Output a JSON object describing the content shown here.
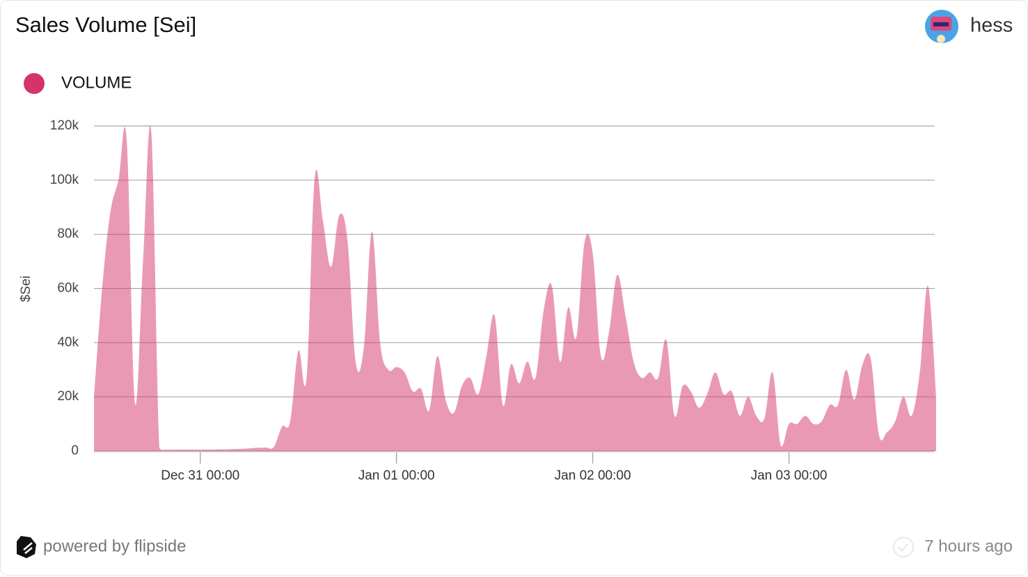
{
  "chart_data": {
    "type": "area",
    "title": "Sales Volume [Sei]",
    "author": "hess",
    "ylabel": "$Sei",
    "footer": "powered by flipside",
    "updated": "7 hours ago",
    "x": [
      "Dec 30 11:00",
      "Dec 30 12:00",
      "Dec 30 13:00",
      "Dec 30 14:00",
      "Dec 30 15:00",
      "Dec 30 16:00",
      "Dec 30 17:00",
      "Dec 30 18:00",
      "Dec 30 19:00",
      "Dec 30 20:00",
      "Dec 30 21:00",
      "Dec 30 22:00",
      "Dec 30 23:00",
      "Dec 31 00:00",
      "Dec 31 01:00",
      "Dec 31 02:00",
      "Dec 31 03:00",
      "Dec 31 04:00",
      "Dec 31 05:00",
      "Dec 31 06:00",
      "Dec 31 07:00",
      "Dec 31 08:00",
      "Dec 31 09:00",
      "Dec 31 10:00",
      "Dec 31 11:00",
      "Dec 31 12:00",
      "Dec 31 13:00",
      "Dec 31 14:00",
      "Dec 31 15:00",
      "Dec 31 16:00",
      "Dec 31 17:00",
      "Dec 31 18:00",
      "Dec 31 19:00",
      "Dec 31 20:00",
      "Dec 31 21:00",
      "Dec 31 22:00",
      "Dec 31 23:00",
      "Jan 01 00:00",
      "Jan 01 01:00",
      "Jan 01 02:00",
      "Jan 01 03:00",
      "Jan 01 04:00",
      "Jan 01 05:00",
      "Jan 01 06:00",
      "Jan 01 07:00",
      "Jan 01 08:00",
      "Jan 01 09:00",
      "Jan 01 10:00",
      "Jan 01 11:00",
      "Jan 01 12:00",
      "Jan 01 13:00",
      "Jan 01 14:00",
      "Jan 01 15:00",
      "Jan 01 16:00",
      "Jan 01 17:00",
      "Jan 01 18:00",
      "Jan 01 19:00",
      "Jan 01 20:00",
      "Jan 01 21:00",
      "Jan 01 22:00",
      "Jan 01 23:00",
      "Jan 02 00:00",
      "Jan 02 01:00",
      "Jan 02 02:00",
      "Jan 02 03:00",
      "Jan 02 04:00",
      "Jan 02 05:00",
      "Jan 02 06:00",
      "Jan 02 07:00",
      "Jan 02 08:00",
      "Jan 02 09:00",
      "Jan 02 10:00",
      "Jan 02 11:00",
      "Jan 02 12:00",
      "Jan 02 13:00",
      "Jan 02 14:00",
      "Jan 02 15:00",
      "Jan 02 16:00",
      "Jan 02 17:00",
      "Jan 02 18:00",
      "Jan 02 19:00",
      "Jan 02 20:00",
      "Jan 02 21:00",
      "Jan 02 22:00",
      "Jan 02 23:00",
      "Jan 03 00:00",
      "Jan 03 01:00",
      "Jan 03 02:00",
      "Jan 03 03:00",
      "Jan 03 04:00",
      "Jan 03 05:00",
      "Jan 03 06:00",
      "Jan 03 07:00",
      "Jan 03 08:00",
      "Jan 03 09:00",
      "Jan 03 10:00",
      "Jan 03 11:00",
      "Jan 03 12:00",
      "Jan 03 13:00",
      "Jan 03 14:00",
      "Jan 03 15:00",
      "Jan 03 16:00",
      "Jan 03 17:00",
      "Jan 03 18:00"
    ],
    "series": [
      {
        "name": "VOLUME",
        "color": "#d6336c",
        "values": [
          20000,
          60000,
          88000,
          100000,
          115000,
          18000,
          70000,
          118000,
          1000,
          500,
          500,
          500,
          500,
          500,
          500,
          600,
          600,
          700,
          800,
          1000,
          1200,
          1300,
          1500,
          9000,
          11000,
          37000,
          27000,
          101000,
          85000,
          68000,
          87000,
          78000,
          33000,
          38000,
          81000,
          40000,
          30000,
          31000,
          29000,
          22000,
          23000,
          15000,
          35000,
          19000,
          14000,
          24000,
          27000,
          21000,
          35000,
          50000,
          17000,
          32000,
          25000,
          33000,
          27000,
          52000,
          61000,
          33000,
          53000,
          42000,
          77000,
          73000,
          35000,
          44000,
          65000,
          50000,
          33000,
          27000,
          29000,
          27000,
          41000,
          13000,
          24000,
          22000,
          16000,
          21000,
          29000,
          21000,
          22000,
          13000,
          20000,
          13000,
          12000,
          29000,
          2000,
          10000,
          10000,
          13000,
          10000,
          11000,
          17000,
          17000,
          30000,
          19000,
          32000,
          34000,
          6000,
          7000,
          11000,
          20000,
          13000,
          29000,
          61000,
          20000
        ]
      }
    ],
    "ylim": [
      0,
      120000
    ],
    "yticks": [
      0,
      {
        "value": 20000,
        "label": "20k"
      },
      {
        "value": 40000,
        "label": "40k"
      },
      {
        "value": 60000,
        "label": "60k"
      },
      {
        "value": 80000,
        "label": "80k"
      },
      {
        "value": 100000,
        "label": "100k"
      },
      {
        "value": 120000,
        "label": "120k"
      }
    ],
    "xticks": [
      "Dec 31 00:00",
      "Jan 01 00:00",
      "Jan 02 00:00",
      "Jan 03 00:00"
    ],
    "grid": true
  }
}
